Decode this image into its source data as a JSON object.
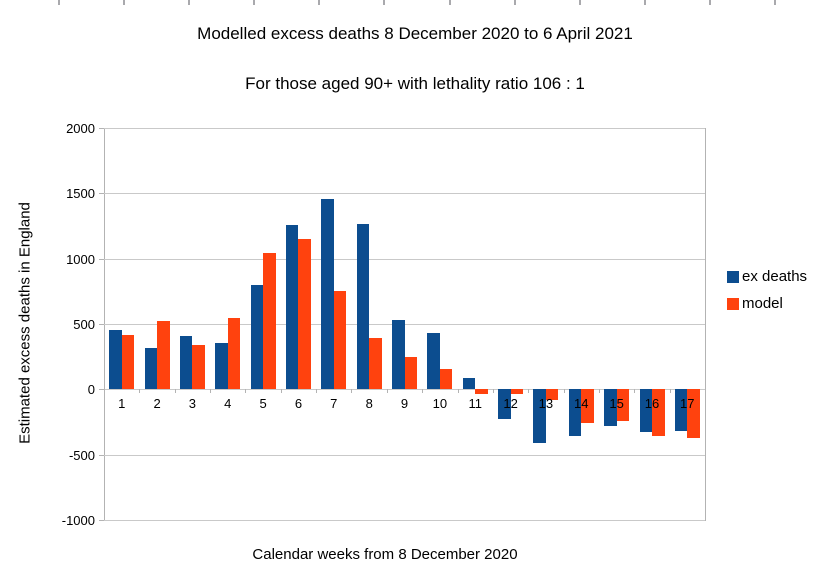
{
  "window": {
    "background": "#ffffff",
    "ruler_tick_color": "#a9a9ad",
    "ruler_ticks_x": [
      58,
      123,
      188,
      253,
      318,
      383,
      449,
      514,
      579,
      644,
      709,
      774
    ]
  },
  "chart_data": {
    "type": "bar",
    "title": "Modelled excess deaths 8 December 2020 to 6 April 2021",
    "subtitle": "For those aged 90+ with lethality ratio 106 : 1",
    "xlabel": "Calendar weeks from 8 December 2020",
    "ylabel": "Estimated excess deaths in England",
    "categories": [
      "1",
      "2",
      "3",
      "4",
      "5",
      "6",
      "7",
      "8",
      "9",
      "10",
      "11",
      "12",
      "13",
      "14",
      "15",
      "16",
      "17"
    ],
    "series": [
      {
        "name": "ex deaths",
        "color": "#0c4d8f",
        "values": [
          455,
          320,
          410,
          355,
          800,
          1260,
          1460,
          1265,
          530,
          435,
          85,
          -230,
          -410,
          -355,
          -285,
          -330,
          -320
        ]
      },
      {
        "name": "model",
        "color": "#ff420e",
        "values": [
          415,
          520,
          340,
          550,
          1040,
          1150,
          750,
          390,
          245,
          155,
          -40,
          -40,
          -85,
          -260,
          -245,
          -360,
          -375
        ]
      }
    ],
    "ylim": [
      -1000,
      2000
    ],
    "yticks": [
      2000,
      1500,
      1000,
      500,
      0,
      -500,
      -1000
    ],
    "grid": true,
    "gridline_color": "#c9c9c9",
    "axis_color": "#b3b3b3",
    "legend_position": "right"
  }
}
